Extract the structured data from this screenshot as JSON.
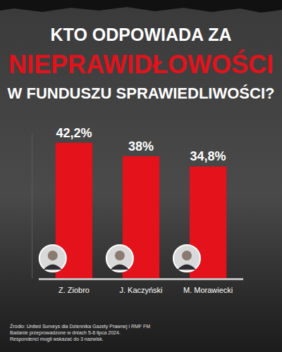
{
  "chart_data": {
    "type": "bar",
    "title": [
      "KTO ODPOWIADA ZA",
      "NIEPRAWIDŁOWOŚCI",
      "W FUNDUSZU SPRAWIEDLIWOŚCI?"
    ],
    "categories": [
      "Z. Ziobro",
      "J. Kaczyński",
      "M. Morawiecki"
    ],
    "values": [
      42.2,
      38,
      34.8
    ],
    "value_labels": [
      "42,2%",
      "38%",
      "34,8%"
    ],
    "color": "#e3121b",
    "ylim": [
      0,
      45
    ],
    "yticks": [],
    "tick_labels": false,
    "data_labels": true,
    "grid": false,
    "annotations": [
      "Źródło: United Surveys dla Dziennika Gazety Prawnej i RMF FM",
      "Badanie przeprowadzone w dniach 5-8 lipca 2024.",
      "Respondenci mogli wskazać do 3 nazwisk."
    ]
  }
}
